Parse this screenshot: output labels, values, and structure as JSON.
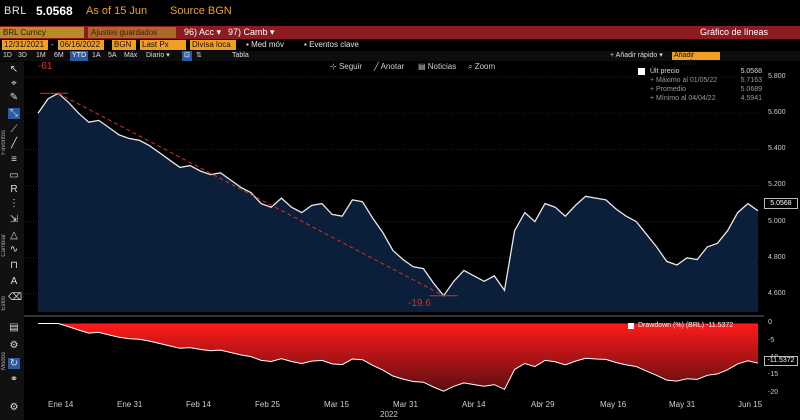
{
  "header": {
    "ticker": "BRL",
    "price": "5.0568",
    "as_of": "As of 15 Jun",
    "source": "Source BGN"
  },
  "redbar": {
    "security": "BRL Curncy",
    "settings_blurred": "Ajustes guardados",
    "actions": "Acc",
    "change": "Camb",
    "chart_title": "Gráfico de líneas"
  },
  "params": {
    "start_date": "12/31/2021",
    "end_date": "06/16/2022",
    "source": "BGN",
    "field": "Last Px",
    "currency": "Divisa loca",
    "med_mov": "Med móv",
    "events": "Eventos clave"
  },
  "ranges": [
    "1D",
    "3D",
    "1M",
    "6M",
    "YTD",
    "1A",
    "5A",
    "Máx",
    "Diario"
  ],
  "selected_range": "YTD",
  "range_extras": {
    "tabla": "Tabla",
    "quick_add": "Añadir rápido",
    "add_study": "Añadir estudio"
  },
  "chart_tools": {
    "follow": "Seguir",
    "annotate": "Anotar",
    "news": "Noticias",
    "zoom": "Zoom"
  },
  "legend": {
    "last_price_label": "Últ precio",
    "last_price": "5.0568",
    "max_label": "Máximo al 01/05/22",
    "max_value": "5.7163",
    "avg_label": "Promedio",
    "avg_value": "5.0689",
    "min_label": "Mínimo al 04/04/22",
    "min_value": "4.5941"
  },
  "annotations": {
    "top": "-61",
    "bottom": "-19.6"
  },
  "drawdown_legend": "Drawdown (%) (BRL)  -11.5372",
  "drawdown_last": "-11.5372",
  "last_value_box": "5.0568",
  "left_toolbar_labels": {
    "favoritos": "Favoritos",
    "cambiar": "Cambiar",
    "estilo": "Estilo",
    "modos": "Modos"
  },
  "colors": {
    "area_fill": "#0b1f3a",
    "price_line": "#e8e8e8",
    "drawdown_fill": "#ff1a1a",
    "trend_line": "#e02b2b",
    "accent_orange": "#f0a020",
    "redbar": "#8c1c22"
  },
  "chart_data": [
    {
      "type": "area",
      "series": [
        {
          "name": "BRL",
          "x": [
            "2021-12-31",
            "2022-01-03",
            "2022-01-05",
            "2022-01-07",
            "2022-01-10",
            "2022-01-12",
            "2022-01-14",
            "2022-01-17",
            "2022-01-19",
            "2022-01-21",
            "2022-01-24",
            "2022-01-26",
            "2022-01-28",
            "2022-01-31",
            "2022-02-02",
            "2022-02-04",
            "2022-02-07",
            "2022-02-09",
            "2022-02-11",
            "2022-02-14",
            "2022-02-16",
            "2022-02-18",
            "2022-02-21",
            "2022-02-23",
            "2022-02-25",
            "2022-02-28",
            "2022-03-02",
            "2022-03-04",
            "2022-03-07",
            "2022-03-09",
            "2022-03-11",
            "2022-03-14",
            "2022-03-16",
            "2022-03-18",
            "2022-03-21",
            "2022-03-23",
            "2022-03-25",
            "2022-03-28",
            "2022-03-30",
            "2022-04-01",
            "2022-04-04",
            "2022-04-06",
            "2022-04-08",
            "2022-04-11",
            "2022-04-13",
            "2022-04-15",
            "2022-04-18",
            "2022-04-20",
            "2022-04-22",
            "2022-04-25",
            "2022-04-27",
            "2022-04-29",
            "2022-05-02",
            "2022-05-04",
            "2022-05-06",
            "2022-05-09",
            "2022-05-11",
            "2022-05-13",
            "2022-05-16",
            "2022-05-18",
            "2022-05-20",
            "2022-05-23",
            "2022-05-25",
            "2022-05-27",
            "2022-05-30",
            "2022-06-01",
            "2022-06-03",
            "2022-06-06",
            "2022-06-08",
            "2022-06-10",
            "2022-06-13",
            "2022-06-15"
          ],
          "values": [
            5.6,
            5.68,
            5.71,
            5.66,
            5.6,
            5.55,
            5.56,
            5.52,
            5.48,
            5.46,
            5.45,
            5.42,
            5.38,
            5.34,
            5.3,
            5.31,
            5.28,
            5.26,
            5.27,
            5.23,
            5.19,
            5.16,
            5.1,
            5.08,
            5.13,
            5.08,
            5.05,
            5.09,
            5.1,
            5.04,
            5.03,
            5.12,
            5.11,
            5.02,
            4.94,
            4.84,
            4.79,
            4.75,
            4.74,
            4.66,
            4.59,
            4.67,
            4.73,
            4.7,
            4.67,
            4.7,
            4.62,
            4.95,
            5.05,
            5.0,
            5.1,
            5.08,
            5.03,
            5.09,
            5.14,
            5.13,
            5.12,
            5.07,
            5.03,
            5.0,
            4.93,
            4.86,
            4.78,
            4.76,
            4.8,
            4.79,
            4.86,
            4.88,
            4.95,
            5.05,
            5.1,
            5.06
          ]
        }
      ],
      "ylim": [
        4.5,
        5.85
      ],
      "y_ticks": [
        "5.800",
        "5.600",
        "5.400",
        "5.200",
        "5.000",
        "4.800",
        "4.600"
      ],
      "x_ticks": [
        "Ene 14",
        "Ene 31",
        "Feb 14",
        "Feb 25",
        "Mar 15",
        "Mar 31",
        "Abr 14",
        "Abr 29",
        "May 16",
        "May 31",
        "Jun 15"
      ],
      "x_year": "2022"
    },
    {
      "type": "area",
      "series": [
        {
          "name": "Drawdown (%) (BRL)",
          "values": [
            0,
            0,
            0,
            -0.9,
            -1.9,
            -2.8,
            -2.6,
            -3.3,
            -4.0,
            -4.4,
            -4.6,
            -5.1,
            -5.8,
            -6.5,
            -7.2,
            -7.0,
            -7.5,
            -7.9,
            -7.7,
            -8.4,
            -9.1,
            -9.6,
            -10.7,
            -11.0,
            -10.2,
            -11.0,
            -11.6,
            -10.9,
            -10.7,
            -11.7,
            -11.9,
            -10.3,
            -10.5,
            -12.1,
            -13.5,
            -15.2,
            -16.1,
            -16.8,
            -17.0,
            -18.4,
            -19.6,
            -18.2,
            -17.2,
            -17.7,
            -18.2,
            -17.7,
            -19.1,
            -13.3,
            -11.6,
            -12.5,
            -10.7,
            -11.1,
            -12.0,
            -10.9,
            -10.1,
            -10.3,
            -10.4,
            -11.3,
            -12.0,
            -12.5,
            -13.8,
            -15.0,
            -16.4,
            -16.7,
            -16.0,
            -16.2,
            -15.0,
            -14.6,
            -13.4,
            -11.7,
            -10.8,
            -11.5
          ]
        }
      ],
      "ylim": [
        -21,
        1
      ],
      "y_ticks": [
        "0",
        "-5",
        "-10",
        "-15",
        "-20"
      ]
    }
  ]
}
